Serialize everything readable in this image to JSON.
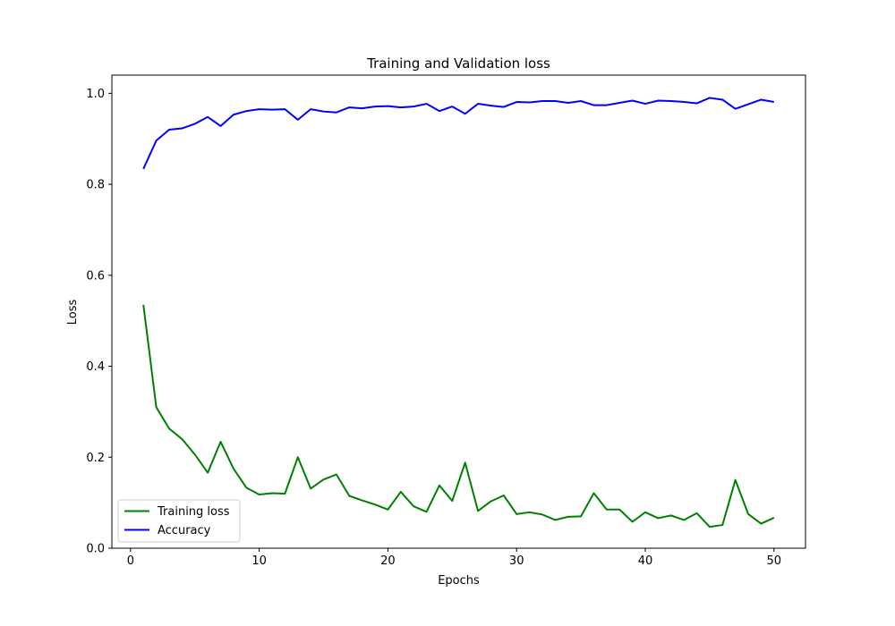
{
  "chart_data": {
    "type": "line",
    "title": "Training and Validation loss",
    "xlabel": "Epochs",
    "ylabel": "Loss",
    "xlim": [
      -1.45,
      52.45
    ],
    "ylim": [
      0.0,
      1.04
    ],
    "x_ticks": [
      0,
      10,
      20,
      30,
      40,
      50
    ],
    "y_ticks": [
      0.0,
      0.2,
      0.4,
      0.6,
      0.8,
      1.0
    ],
    "x_tick_labels": [
      "0",
      "10",
      "20",
      "30",
      "40",
      "50"
    ],
    "y_tick_labels": [
      "0.0",
      "0.2",
      "0.4",
      "0.6",
      "0.8",
      "1.0"
    ],
    "grid": false,
    "legend_position": "lower-left",
    "x": [
      1,
      2,
      3,
      4,
      5,
      6,
      7,
      8,
      9,
      10,
      11,
      12,
      13,
      14,
      15,
      16,
      17,
      18,
      19,
      20,
      21,
      22,
      23,
      24,
      25,
      26,
      27,
      28,
      29,
      30,
      31,
      32,
      33,
      34,
      35,
      36,
      37,
      38,
      39,
      40,
      41,
      42,
      43,
      44,
      45,
      46,
      47,
      48,
      49,
      50
    ],
    "series": [
      {
        "name": "Training loss",
        "color": "#008000",
        "values": [
          0.535,
          0.31,
          0.263,
          0.24,
          0.206,
          0.166,
          0.234,
          0.175,
          0.133,
          0.118,
          0.121,
          0.12,
          0.2,
          0.131,
          0.151,
          0.162,
          0.115,
          0.105,
          0.096,
          0.085,
          0.124,
          0.092,
          0.08,
          0.138,
          0.104,
          0.188,
          0.082,
          0.103,
          0.116,
          0.075,
          0.079,
          0.074,
          0.062,
          0.069,
          0.07,
          0.121,
          0.085,
          0.085,
          0.058,
          0.079,
          0.066,
          0.072,
          0.062,
          0.077,
          0.047,
          0.051,
          0.15,
          0.075,
          0.054,
          0.067
        ]
      },
      {
        "name": "Accuracy",
        "color": "#0000ff",
        "values": [
          0.834,
          0.896,
          0.92,
          0.923,
          0.933,
          0.948,
          0.928,
          0.953,
          0.961,
          0.965,
          0.964,
          0.965,
          0.942,
          0.965,
          0.96,
          0.958,
          0.969,
          0.967,
          0.971,
          0.972,
          0.969,
          0.971,
          0.977,
          0.961,
          0.971,
          0.955,
          0.977,
          0.973,
          0.97,
          0.981,
          0.98,
          0.983,
          0.983,
          0.979,
          0.983,
          0.974,
          0.974,
          0.979,
          0.984,
          0.977,
          0.984,
          0.983,
          0.981,
          0.978,
          0.99,
          0.986,
          0.966,
          0.976,
          0.986,
          0.981
        ]
      }
    ]
  }
}
